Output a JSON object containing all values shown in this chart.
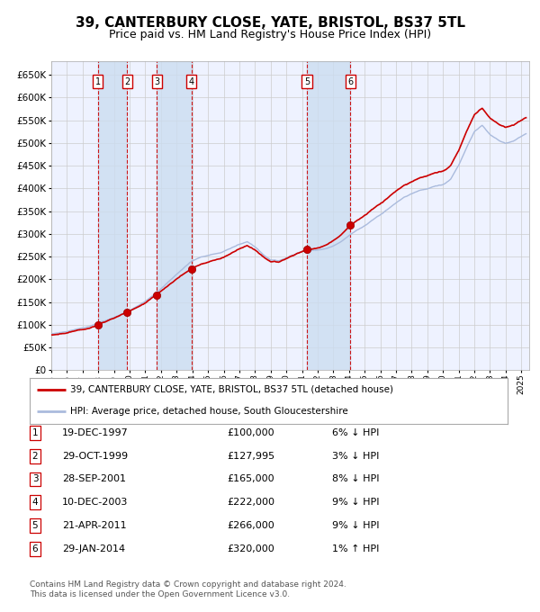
{
  "title": "39, CANTERBURY CLOSE, YATE, BRISTOL, BS37 5TL",
  "subtitle": "Price paid vs. HM Land Registry's House Price Index (HPI)",
  "legend_line1": "39, CANTERBURY CLOSE, YATE, BRISTOL, BS37 5TL (detached house)",
  "legend_line2": "HPI: Average price, detached house, South Gloucestershire",
  "footer1": "Contains HM Land Registry data © Crown copyright and database right 2024.",
  "footer2": "This data is licensed under the Open Government Licence v3.0.",
  "transactions": [
    {
      "num": 1,
      "date": "19-DEC-1997",
      "price": 100000,
      "pct": "6%",
      "dir": "↓",
      "decimal_year": 1997.96
    },
    {
      "num": 2,
      "date": "29-OCT-1999",
      "price": 127995,
      "pct": "3%",
      "dir": "↓",
      "decimal_year": 1999.83
    },
    {
      "num": 3,
      "date": "28-SEP-2001",
      "price": 165000,
      "pct": "8%",
      "dir": "↓",
      "decimal_year": 2001.74
    },
    {
      "num": 4,
      "date": "10-DEC-2003",
      "price": 222000,
      "pct": "9%",
      "dir": "↓",
      "decimal_year": 2003.94
    },
    {
      "num": 5,
      "date": "21-APR-2011",
      "price": 266000,
      "pct": "9%",
      "dir": "↓",
      "decimal_year": 2011.31
    },
    {
      "num": 6,
      "date": "29-JAN-2014",
      "price": 320000,
      "pct": "1%",
      "dir": "↑",
      "decimal_year": 2014.08
    }
  ],
  "ylim": [
    0,
    680000
  ],
  "xlim_start": 1995.0,
  "xlim_end": 2025.5,
  "background_color": "#ffffff",
  "plot_bg_color": "#eef2ff",
  "grid_color": "#cccccc",
  "red_color": "#cc0000",
  "hpi_color": "#aabbdd",
  "shade_color": "#ccddf0",
  "hpi_years_key": [
    1995,
    1995.5,
    1996,
    1996.5,
    1997,
    1997.5,
    1998,
    1998.5,
    1999,
    1999.5,
    2000,
    2000.5,
    2001,
    2001.5,
    2002,
    2002.5,
    2003,
    2003.5,
    2004,
    2004.5,
    2005,
    2005.5,
    2006,
    2006.5,
    2007,
    2007.5,
    2008,
    2008.5,
    2009,
    2009.5,
    2010,
    2010.5,
    2011,
    2011.5,
    2012,
    2012.5,
    2013,
    2013.5,
    2014,
    2014.5,
    2015,
    2015.5,
    2016,
    2016.5,
    2017,
    2017.5,
    2018,
    2018.5,
    2019,
    2019.5,
    2020,
    2020.5,
    2021,
    2021.5,
    2022,
    2022.5,
    2023,
    2023.5,
    2024,
    2024.5,
    2025.3
  ],
  "hpi_vals_key": [
    80000,
    82000,
    84000,
    88000,
    92000,
    96000,
    102000,
    108000,
    114000,
    122000,
    130000,
    140000,
    150000,
    162000,
    176000,
    192000,
    208000,
    224000,
    238000,
    246000,
    250000,
    254000,
    260000,
    268000,
    276000,
    280000,
    268000,
    252000,
    240000,
    238000,
    245000,
    252000,
    260000,
    264000,
    265000,
    268000,
    275000,
    285000,
    298000,
    310000,
    320000,
    332000,
    345000,
    358000,
    370000,
    382000,
    390000,
    396000,
    400000,
    405000,
    408000,
    420000,
    450000,
    490000,
    525000,
    540000,
    520000,
    508000,
    500000,
    505000,
    520000
  ]
}
